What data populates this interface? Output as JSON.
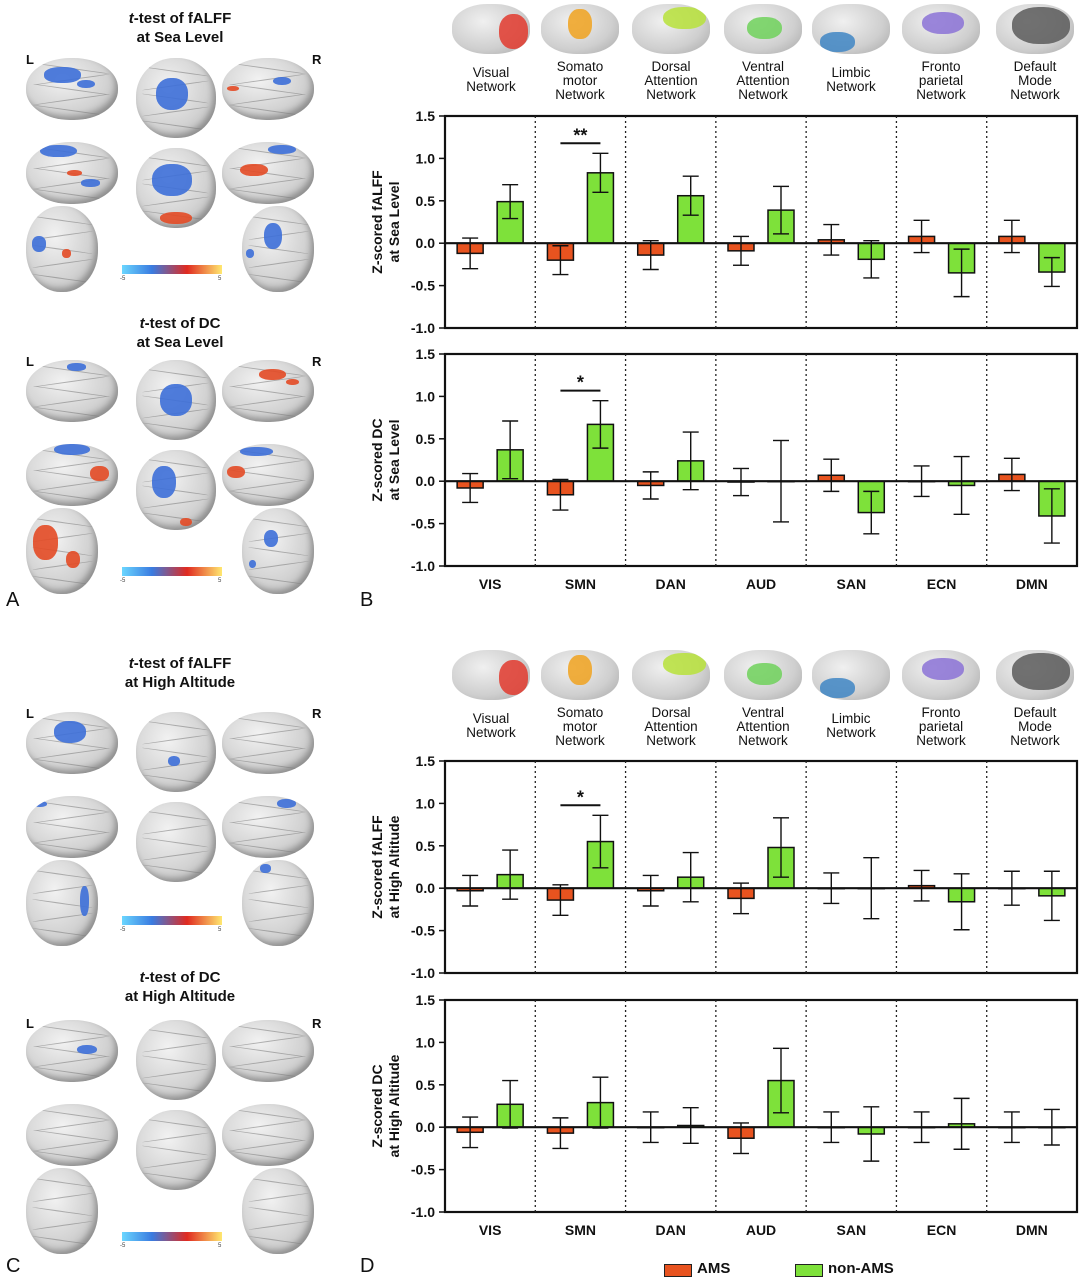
{
  "panel_labels": {
    "a": "A",
    "b": "B",
    "c": "C",
    "d": "D"
  },
  "brain_titles": {
    "a_top_line1": "-test of fALFF",
    "a_top_line2": "at Sea Level",
    "a_bot_line1": "-test of DC",
    "a_bot_line2": "at Sea Level",
    "c_top_line1": "-test of fALFF",
    "c_top_line2": "at High Altitude",
    "c_bot_line1": "-test of DC",
    "c_bot_line2": "at High Altitude",
    "t_italic": "t"
  },
  "hemisphere": {
    "left": "L",
    "right": "R"
  },
  "colorbar": {
    "min": "-5",
    "max": "5"
  },
  "networks": [
    {
      "name": "Visual\nNetwork",
      "icon": "visual-network-icon",
      "color": "#e23a2e"
    },
    {
      "name": "Somato\nmotor\nNetwork",
      "icon": "somatomotor-network-icon",
      "color": "#f0a21f"
    },
    {
      "name": "Dorsal\nAttention\nNetwork",
      "icon": "dorsal-attention-network-icon",
      "color": "#b7e23a"
    },
    {
      "name": "Ventral\nAttention\nNetwork",
      "icon": "ventral-attention-network-icon",
      "color": "#6ed15a"
    },
    {
      "name": "Limbic\nNetwork",
      "icon": "limbic-network-icon",
      "color": "#3f86c4"
    },
    {
      "name": "Fronto\nparietal\nNetwork",
      "icon": "frontoparietal-network-icon",
      "color": "#8b72d6"
    },
    {
      "name": "Default\nMode\nNetwork",
      "icon": "default-mode-network-icon",
      "color": "#5a5a5a"
    }
  ],
  "legend": {
    "ams": "AMS",
    "non_ams": "non-AMS",
    "ams_color": "#e8531f",
    "non_ams_color": "#7ee13a"
  },
  "chart_data": [
    {
      "type": "bar",
      "panel": "B-top",
      "categories": [
        "VIS",
        "SMN",
        "DAN",
        "AUD",
        "SAN",
        "ECN",
        "DMN"
      ],
      "ylabel": "Z-scored fALFF\nat Sea Level",
      "ylim": [
        -1.0,
        1.5
      ],
      "yticks": [
        "-1.0",
        "-0.5",
        "0.0",
        "0.5",
        "1.0",
        "1.5"
      ],
      "series": [
        {
          "name": "AMS",
          "values": [
            -0.12,
            -0.2,
            -0.14,
            -0.09,
            0.04,
            0.08,
            0.08
          ],
          "err": [
            0.18,
            0.17,
            0.17,
            0.17,
            0.18,
            0.19,
            0.19
          ]
        },
        {
          "name": "non-AMS",
          "values": [
            0.49,
            0.83,
            0.56,
            0.39,
            -0.19,
            -0.35,
            -0.34
          ],
          "err": [
            0.2,
            0.23,
            0.23,
            0.28,
            0.22,
            0.28,
            0.17
          ]
        }
      ],
      "significance": [
        {
          "category": "SMN",
          "label": "**"
        }
      ]
    },
    {
      "type": "bar",
      "panel": "B-bottom",
      "categories": [
        "VIS",
        "SMN",
        "DAN",
        "AUD",
        "SAN",
        "ECN",
        "DMN"
      ],
      "ylabel": "Z-scored DC\nat Sea Level",
      "ylim": [
        -1.0,
        1.5
      ],
      "yticks": [
        "-1.0",
        "-0.5",
        "0.0",
        "0.5",
        "1.0",
        "1.5"
      ],
      "series": [
        {
          "name": "AMS",
          "values": [
            -0.08,
            -0.16,
            -0.05,
            -0.01,
            0.07,
            0.0,
            0.08
          ],
          "err": [
            0.17,
            0.18,
            0.16,
            0.16,
            0.19,
            0.18,
            0.19
          ]
        },
        {
          "name": "non-AMS",
          "values": [
            0.37,
            0.67,
            0.24,
            0.0,
            -0.37,
            -0.05,
            -0.41
          ],
          "err": [
            0.34,
            0.28,
            0.34,
            0.48,
            0.25,
            0.34,
            0.32
          ]
        }
      ],
      "significance": [
        {
          "category": "SMN",
          "label": "*"
        }
      ]
    },
    {
      "type": "bar",
      "panel": "D-top",
      "categories": [
        "VIS",
        "SMN",
        "DAN",
        "AUD",
        "SAN",
        "ECN",
        "DMN"
      ],
      "ylabel": "Z-scored fALFF\nat High Altitude",
      "ylim": [
        -1.0,
        1.5
      ],
      "yticks": [
        "-1.0",
        "-0.5",
        "0.0",
        "0.5",
        "1.0",
        "1.5"
      ],
      "series": [
        {
          "name": "AMS",
          "values": [
            -0.03,
            -0.14,
            -0.03,
            -0.12,
            0.0,
            0.03,
            0.0
          ],
          "err": [
            0.18,
            0.18,
            0.18,
            0.18,
            0.18,
            0.18,
            0.2
          ]
        },
        {
          "name": "non-AMS",
          "values": [
            0.16,
            0.55,
            0.13,
            0.48,
            0.0,
            -0.16,
            -0.09
          ],
          "err": [
            0.29,
            0.31,
            0.29,
            0.35,
            0.36,
            0.33,
            0.29
          ]
        }
      ],
      "significance": [
        {
          "category": "SMN",
          "label": "*"
        }
      ]
    },
    {
      "type": "bar",
      "panel": "D-bottom",
      "categories": [
        "VIS",
        "SMN",
        "DAN",
        "AUD",
        "SAN",
        "ECN",
        "DMN"
      ],
      "ylabel": "Z-scored DC\nat High Altitude",
      "ylim": [
        -1.0,
        1.5
      ],
      "yticks": [
        "-1.0",
        "-0.5",
        "0.0",
        "0.5",
        "1.0",
        "1.5"
      ],
      "series": [
        {
          "name": "AMS",
          "values": [
            -0.06,
            -0.07,
            0.0,
            -0.13,
            0.0,
            0.0,
            0.0
          ],
          "err": [
            0.18,
            0.18,
            0.18,
            0.18,
            0.18,
            0.18,
            0.18
          ]
        },
        {
          "name": "non-AMS",
          "values": [
            0.27,
            0.29,
            0.02,
            0.55,
            -0.08,
            0.04,
            0.0
          ],
          "err": [
            0.28,
            0.3,
            0.21,
            0.38,
            0.32,
            0.3,
            0.21
          ]
        }
      ],
      "significance": []
    }
  ]
}
